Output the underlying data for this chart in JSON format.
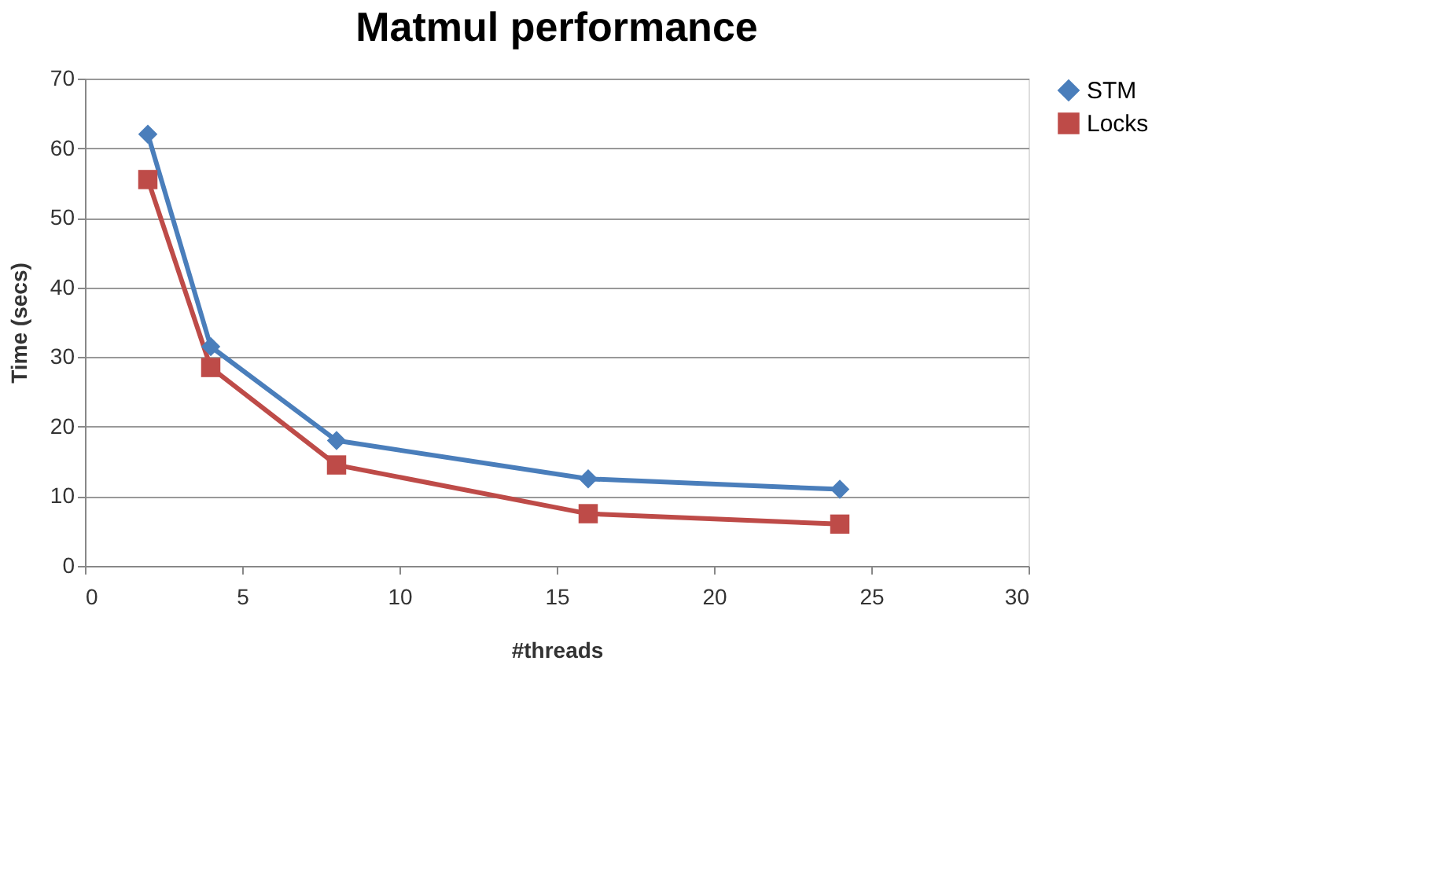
{
  "chart_data": {
    "type": "line",
    "title": "Matmul performance",
    "xlabel": "#threads",
    "ylabel": "Time (secs)",
    "x": [
      2,
      4,
      8,
      16,
      24
    ],
    "series": [
      {
        "name": "STM",
        "color": "#4a7ebb",
        "marker": "diamond",
        "values": [
          62,
          31.5,
          18,
          12.5,
          11
        ]
      },
      {
        "name": "Locks",
        "color": "#be4b48",
        "marker": "square",
        "values": [
          55.5,
          28.5,
          14.5,
          7.5,
          6
        ]
      }
    ],
    "xlim": [
      0,
      30
    ],
    "xticks": [
      0,
      5,
      10,
      15,
      20,
      25,
      30
    ],
    "ylim": [
      0,
      70
    ],
    "yticks": [
      0,
      10,
      20,
      30,
      40,
      50,
      60,
      70
    ],
    "grid": "y",
    "legend": "right"
  }
}
